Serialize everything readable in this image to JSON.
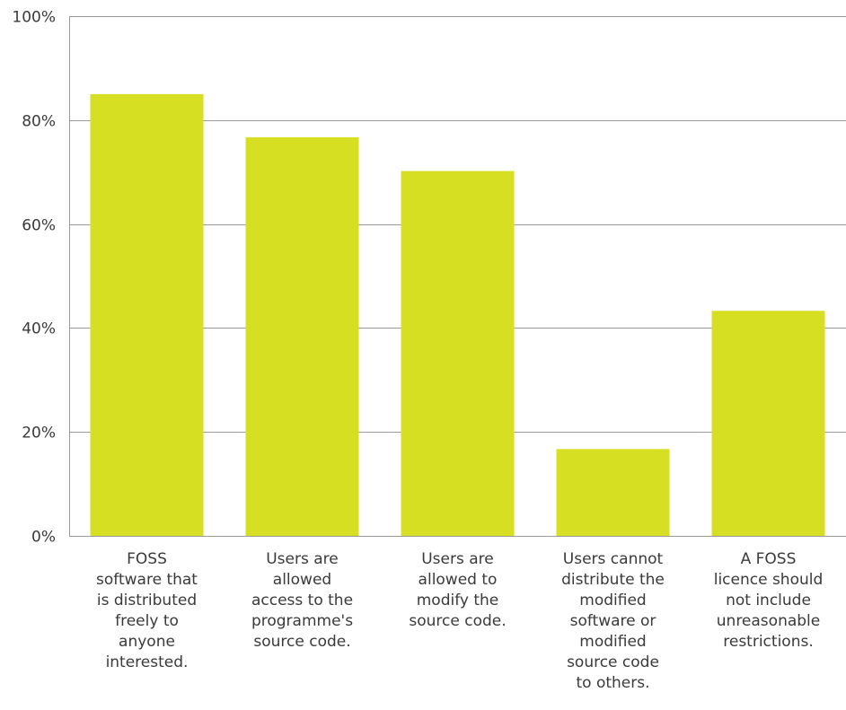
{
  "chart_data": {
    "type": "bar",
    "categories": [
      [
        "FOSS",
        "software that",
        "is distributed",
        "freely to",
        "anyone",
        "interested."
      ],
      [
        "Users are",
        "allowed",
        "access to the",
        "programme's",
        "source code."
      ],
      [
        "Users are",
        "allowed to",
        "modify the",
        "source code."
      ],
      [
        "Users cannot",
        "distribute the",
        "modified",
        "software or",
        "modified",
        "source code",
        "to others."
      ],
      [
        "A FOSS",
        "licence should",
        "not include",
        "unreasonable",
        "restrictions."
      ]
    ],
    "values": [
      85,
      76.7,
      70.2,
      16.7,
      43.3
    ],
    "ylim": [
      0,
      100
    ],
    "yticks": [
      0,
      20,
      40,
      60,
      80,
      100
    ],
    "ytick_labels": [
      "0%",
      "20%",
      "40%",
      "60%",
      "80%",
      "100%"
    ],
    "grid": true,
    "bar_color": "#d7df23",
    "grid_color": "#9a9a9a"
  }
}
